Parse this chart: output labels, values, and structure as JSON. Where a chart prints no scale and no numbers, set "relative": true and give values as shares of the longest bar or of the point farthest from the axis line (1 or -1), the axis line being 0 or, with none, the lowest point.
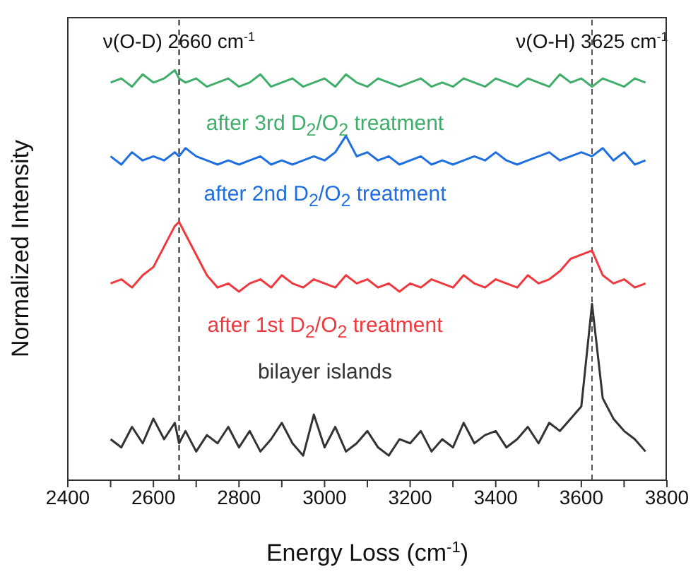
{
  "chart_data": {
    "type": "line",
    "relative": true,
    "xlabel": "Energy Loss (cm$^{-1}$)",
    "ylabel": "Normalized Intensity",
    "x": [
      2500,
      2525,
      2550,
      2575,
      2600,
      2625,
      2650,
      2660,
      2675,
      2700,
      2725,
      2750,
      2775,
      2800,
      2825,
      2850,
      2875,
      2900,
      2925,
      2950,
      2975,
      3000,
      3025,
      3050,
      3075,
      3100,
      3125,
      3150,
      3175,
      3200,
      3225,
      3250,
      3275,
      3300,
      3325,
      3350,
      3375,
      3400,
      3425,
      3450,
      3475,
      3500,
      3525,
      3550,
      3575,
      3600,
      3625,
      3650,
      3675,
      3700,
      3725,
      3750
    ],
    "xlim": [
      2400,
      3800
    ],
    "xticks": [
      2400,
      {
        "value": 2500,
        "label": null
      },
      2600,
      {
        "value": 2700,
        "label": null
      },
      2800,
      {
        "value": 2900,
        "label": null
      },
      3000,
      {
        "value": 3100,
        "label": null
      },
      3200,
      {
        "value": 3300,
        "label": null
      },
      3400,
      {
        "value": 3500,
        "label": null
      },
      3600,
      {
        "value": 3700,
        "label": null
      },
      3800
    ],
    "series": [
      {
        "name": "after 3rd D$_{2}$/O$_{2}$ treatment",
        "color": "#3fae6a",
        "values": [
          0.97,
          0.98,
          0.96,
          0.99,
          0.97,
          0.98,
          1.0,
          0.98,
          0.97,
          0.98,
          0.96,
          0.97,
          0.98,
          0.96,
          0.97,
          0.99,
          0.96,
          0.97,
          0.98,
          0.96,
          0.97,
          0.98,
          0.96,
          0.99,
          0.97,
          0.96,
          0.98,
          0.97,
          0.96,
          0.97,
          0.98,
          0.96,
          0.97,
          0.96,
          0.98,
          0.97,
          0.96,
          0.98,
          0.97,
          0.96,
          0.98,
          0.97,
          0.96,
          0.99,
          0.97,
          0.98,
          0.96,
          0.98,
          0.97,
          0.96,
          0.98,
          0.97
        ]
      },
      {
        "name": "after 2nd D$_{2}$/O$_{2}$ treatment",
        "color": "#1f6fe0",
        "values": [
          0.79,
          0.77,
          0.8,
          0.78,
          0.79,
          0.78,
          0.8,
          0.79,
          0.81,
          0.79,
          0.78,
          0.77,
          0.78,
          0.77,
          0.78,
          0.79,
          0.77,
          0.78,
          0.77,
          0.78,
          0.79,
          0.78,
          0.8,
          0.84,
          0.79,
          0.8,
          0.78,
          0.79,
          0.77,
          0.78,
          0.79,
          0.77,
          0.78,
          0.77,
          0.78,
          0.79,
          0.78,
          0.8,
          0.78,
          0.77,
          0.78,
          0.79,
          0.8,
          0.78,
          0.79,
          0.8,
          0.79,
          0.81,
          0.78,
          0.8,
          0.77,
          0.78
        ]
      },
      {
        "name": "after 1st D$_{2}$/O$_{2}$ treatment",
        "color": "#f0393f",
        "values": [
          0.48,
          0.49,
          0.47,
          0.5,
          0.52,
          0.57,
          0.62,
          0.63,
          0.6,
          0.55,
          0.5,
          0.47,
          0.48,
          0.46,
          0.48,
          0.49,
          0.47,
          0.5,
          0.48,
          0.47,
          0.49,
          0.48,
          0.47,
          0.5,
          0.48,
          0.49,
          0.47,
          0.48,
          0.46,
          0.48,
          0.47,
          0.49,
          0.48,
          0.47,
          0.5,
          0.48,
          0.47,
          0.49,
          0.48,
          0.47,
          0.5,
          0.48,
          0.49,
          0.51,
          0.54,
          0.55,
          0.56,
          0.5,
          0.48,
          0.49,
          0.47,
          0.48
        ]
      },
      {
        "name": "bilayer islands",
        "color": "#333333",
        "values": [
          0.1,
          0.08,
          0.13,
          0.09,
          0.15,
          0.1,
          0.14,
          0.09,
          0.12,
          0.07,
          0.11,
          0.09,
          0.13,
          0.08,
          0.12,
          0.07,
          0.1,
          0.14,
          0.09,
          0.06,
          0.16,
          0.08,
          0.13,
          0.07,
          0.09,
          0.12,
          0.08,
          0.06,
          0.1,
          0.09,
          0.12,
          0.07,
          0.1,
          0.08,
          0.14,
          0.09,
          0.11,
          0.12,
          0.08,
          0.1,
          0.13,
          0.09,
          0.14,
          0.12,
          0.15,
          0.18,
          0.43,
          0.2,
          0.15,
          0.12,
          0.1,
          0.07
        ]
      }
    ],
    "ref_lines": [
      {
        "axis": "x",
        "value": 2660,
        "label": "ν(O-D) 2660 cm$^{-1}$",
        "line_style": "dashed",
        "color": "#222222"
      },
      {
        "axis": "x",
        "value": 3625,
        "label": "ν(O-H) 3625 cm$^{-1}$",
        "line_style": "dashed",
        "color": "#555555"
      }
    ]
  }
}
